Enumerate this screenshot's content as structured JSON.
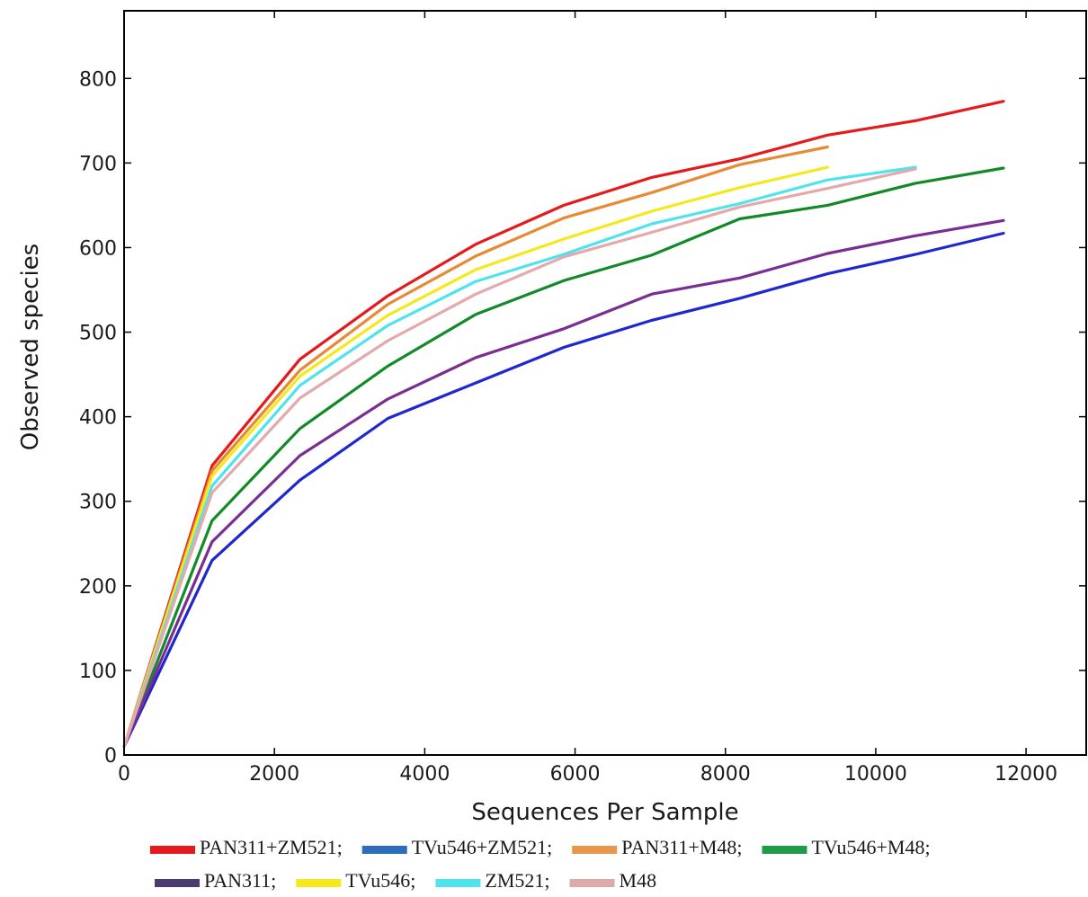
{
  "chart_data": {
    "type": "line",
    "title": "",
    "xlabel": "Sequences Per Sample",
    "ylabel": "Observed species",
    "xlim": [
      0,
      12800
    ],
    "ylim": [
      0,
      880
    ],
    "xticks": [
      0,
      2000,
      4000,
      6000,
      8000,
      10000,
      12000
    ],
    "yticks": [
      0,
      100,
      200,
      300,
      400,
      500,
      600,
      700,
      800
    ],
    "grid": false,
    "legend_position": "bottom",
    "series": [
      {
        "name": "PAN311+ZM521;",
        "line_color": "#e41a1c",
        "legend_color": "#e41a1c",
        "x": [
          0,
          1170,
          2340,
          3510,
          4680,
          5850,
          7020,
          8190,
          9360,
          10530,
          11700
        ],
        "y": [
          10,
          342,
          468,
          543,
          604,
          650,
          683,
          705,
          733,
          750,
          773
        ]
      },
      {
        "name": "TVu546+ZM521;",
        "line_color": "#1f27cf",
        "legend_color": "#2a6db8",
        "x": [
          0,
          1170,
          2340,
          3510,
          4680,
          5850,
          7020,
          8190,
          9360,
          10530,
          11700
        ],
        "y": [
          10,
          230,
          325,
          398,
          440,
          482,
          514,
          540,
          569,
          592,
          617
        ]
      },
      {
        "name": "PAN311+M48;",
        "line_color": "#e68a33",
        "legend_color": "#e8964a",
        "x": [
          0,
          1170,
          2340,
          3510,
          4680,
          5850,
          7020,
          8190,
          9360
        ],
        "y": [
          10,
          336,
          455,
          533,
          590,
          635,
          665,
          698,
          719
        ]
      },
      {
        "name": "TVu546+M48;",
        "line_color": "#138a28",
        "legend_color": "#1f9c4a",
        "x": [
          0,
          1170,
          2340,
          3510,
          4680,
          5850,
          7020,
          8190,
          9360,
          10530,
          11700
        ],
        "y": [
          10,
          277,
          386,
          460,
          521,
          561,
          591,
          634,
          650,
          676,
          694
        ]
      },
      {
        "name": "PAN311;",
        "line_color": "#7a2e91",
        "legend_color": "#4a3a6e",
        "x": [
          0,
          1170,
          2340,
          3510,
          4680,
          5850,
          7020,
          8190,
          9360,
          10530,
          11700
        ],
        "y": [
          10,
          252,
          354,
          421,
          470,
          504,
          545,
          564,
          593,
          614,
          632
        ]
      },
      {
        "name": "TVu546;",
        "line_color": "#f5e81c",
        "legend_color": "#f5e81c",
        "x": [
          0,
          1170,
          2340,
          3510,
          4680,
          5850,
          7020,
          8190,
          9360
        ],
        "y": [
          10,
          330,
          448,
          520,
          574,
          610,
          643,
          671,
          695
        ]
      },
      {
        "name": "ZM521;",
        "line_color": "#4fe3ee",
        "legend_color": "#4fe3ee",
        "x": [
          0,
          1170,
          2340,
          3510,
          4680,
          5850,
          7020,
          8190,
          9360,
          10530
        ],
        "y": [
          10,
          318,
          437,
          508,
          560,
          592,
          628,
          652,
          680,
          695
        ]
      },
      {
        "name": "M48",
        "line_color": "#e3a9ad",
        "legend_color": "#dcaaa9",
        "x": [
          0,
          1170,
          2340,
          3510,
          4680,
          5850,
          7020,
          8190,
          9360,
          10530
        ],
        "y": [
          10,
          310,
          422,
          490,
          545,
          589,
          618,
          648,
          670,
          693
        ]
      }
    ]
  }
}
